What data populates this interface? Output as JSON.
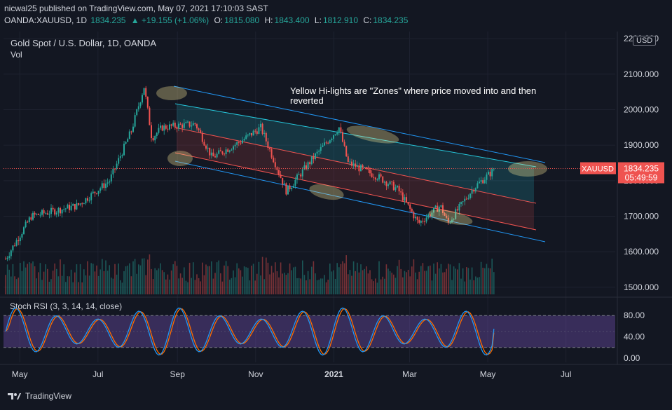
{
  "header": {
    "line1": "nicwal25 published on TradingView.com, May 07, 2021 17:10:03 SAST",
    "symbol": "OANDA:XAUUSD, 1D",
    "last": "1834.235",
    "change": "+19.155 (+1.06%)",
    "o_label": "O:",
    "o": "1815.080",
    "h_label": "H:",
    "h": "1843.400",
    "l_label": "L:",
    "l": "1812.910",
    "c_label": "C:",
    "c": "1834.235"
  },
  "legend": {
    "title": "Gold Spot / U.S. Dollar, 1D, OANDA",
    "vol": "Vol"
  },
  "annotation": {
    "line1": "Yellow Hi-lights are \"Zones\" where price moved into and then",
    "line2": "reverted"
  },
  "price_tag": {
    "symbol": "XAUUSD",
    "price": "1834.235",
    "countdown": "05:49:59"
  },
  "currency_button": "USD",
  "footer": {
    "brand": "TradingView"
  },
  "colors": {
    "background": "#131722",
    "up": "#26a69a",
    "down": "#ef5350",
    "channel_blue": "#2196f3",
    "channel_red": "#ef5350",
    "zone": "#ffeb99",
    "stoch_k": "#2196f3",
    "stoch_d": "#ff6d00",
    "stoch_band": "#7e57c2"
  },
  "chart_data": {
    "type": "candlestick",
    "title": "Gold Spot / U.S. Dollar, 1D, OANDA",
    "x_ticks": [
      "May",
      "Jul",
      "Sep",
      "Nov",
      "2021",
      "Mar",
      "May",
      "Jul"
    ],
    "y_ticks": [
      "1500.000",
      "1600.000",
      "1700.000",
      "1800.000",
      "1900.000",
      "2000.000",
      "2100.000",
      "2200.000"
    ],
    "ylim": [
      1480,
      2220
    ],
    "range": "2020-04-20 to 2021-05-07",
    "key_points": [
      {
        "date": "2020-04-20",
        "close": 1580
      },
      {
        "date": "2020-05-10",
        "close": 1700
      },
      {
        "date": "2020-06-15",
        "close": 1730
      },
      {
        "date": "2020-07-10",
        "close": 1800
      },
      {
        "date": "2020-07-27",
        "close": 1940
      },
      {
        "date": "2020-08-06",
        "close": 2065
      },
      {
        "date": "2020-08-12",
        "close": 1920
      },
      {
        "date": "2020-08-20",
        "close": 1950
      },
      {
        "date": "2020-09-15",
        "close": 1960
      },
      {
        "date": "2020-09-28",
        "close": 1865
      },
      {
        "date": "2020-10-20",
        "close": 1910
      },
      {
        "date": "2020-11-05",
        "close": 1950
      },
      {
        "date": "2020-11-25",
        "close": 1770
      },
      {
        "date": "2020-12-15",
        "close": 1860
      },
      {
        "date": "2021-01-05",
        "close": 1950
      },
      {
        "date": "2021-01-12",
        "close": 1850
      },
      {
        "date": "2021-02-05",
        "close": 1810
      },
      {
        "date": "2021-02-20",
        "close": 1775
      },
      {
        "date": "2021-03-08",
        "close": 1680
      },
      {
        "date": "2021-03-25",
        "close": 1730
      },
      {
        "date": "2021-03-31",
        "close": 1680
      },
      {
        "date": "2021-04-20",
        "close": 1780
      },
      {
        "date": "2021-05-07",
        "close": 1834.235
      }
    ],
    "stoch_rsi": {
      "label": "Stoch RSI (3, 3, 14, 14, close)",
      "y_ticks": [
        "80.00",
        "40.00",
        "0.00"
      ],
      "upper_band": 80,
      "lower_band": 20,
      "ylim": [
        0,
        100
      ],
      "last_k": 55,
      "last_d": 48
    }
  }
}
